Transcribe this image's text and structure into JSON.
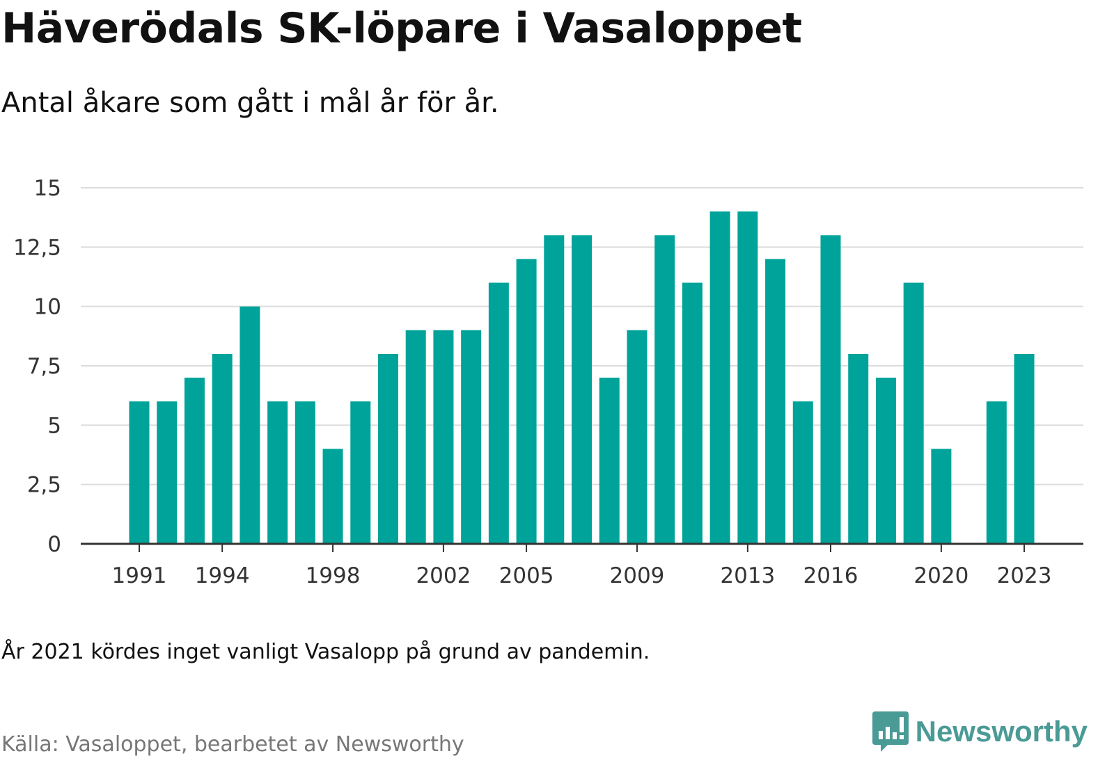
{
  "header": {
    "title": "Häverödals SK-löpare i Vasaloppet",
    "subtitle": "Antal åkare som gått i mål år för år."
  },
  "footer": {
    "note": "År 2021 kördes inget vanligt Vasalopp på grund av pandemin.",
    "source": "Källa: Vasaloppet, bearbetet av Newsworthy",
    "brand_name": "Newsworthy"
  },
  "colors": {
    "bar": "#00a39a",
    "brand": "#4a9a96"
  },
  "chart_data": {
    "type": "bar",
    "title": "Häverödals SK-löpare i Vasaloppet",
    "subtitle": "Antal åkare som gått i mål år för år.",
    "xlabel": "",
    "ylabel": "",
    "ylim": [
      0,
      15
    ],
    "grid": true,
    "yticks": [
      0,
      2.5,
      5,
      7.5,
      10,
      12.5,
      15
    ],
    "ytick_labels": [
      "0",
      "2,5",
      "5",
      "7,5",
      "10",
      "12,5",
      "15"
    ],
    "xtick_labels": [
      "1991",
      "1994",
      "1998",
      "2002",
      "2005",
      "2009",
      "2013",
      "2016",
      "2020",
      "2023"
    ],
    "categories": [
      1991,
      1992,
      1993,
      1994,
      1995,
      1996,
      1997,
      1998,
      1999,
      2000,
      2001,
      2002,
      2003,
      2004,
      2005,
      2006,
      2007,
      2008,
      2009,
      2010,
      2011,
      2012,
      2013,
      2014,
      2015,
      2016,
      2017,
      2018,
      2019,
      2020,
      2021,
      2022,
      2023
    ],
    "values": [
      6,
      6,
      7,
      8,
      10,
      6,
      6,
      4,
      6,
      8,
      9,
      9,
      9,
      11,
      12,
      13,
      13,
      7,
      9,
      13,
      11,
      14,
      14,
      12,
      6,
      13,
      8,
      7,
      11,
      4,
      null,
      6,
      8
    ]
  }
}
